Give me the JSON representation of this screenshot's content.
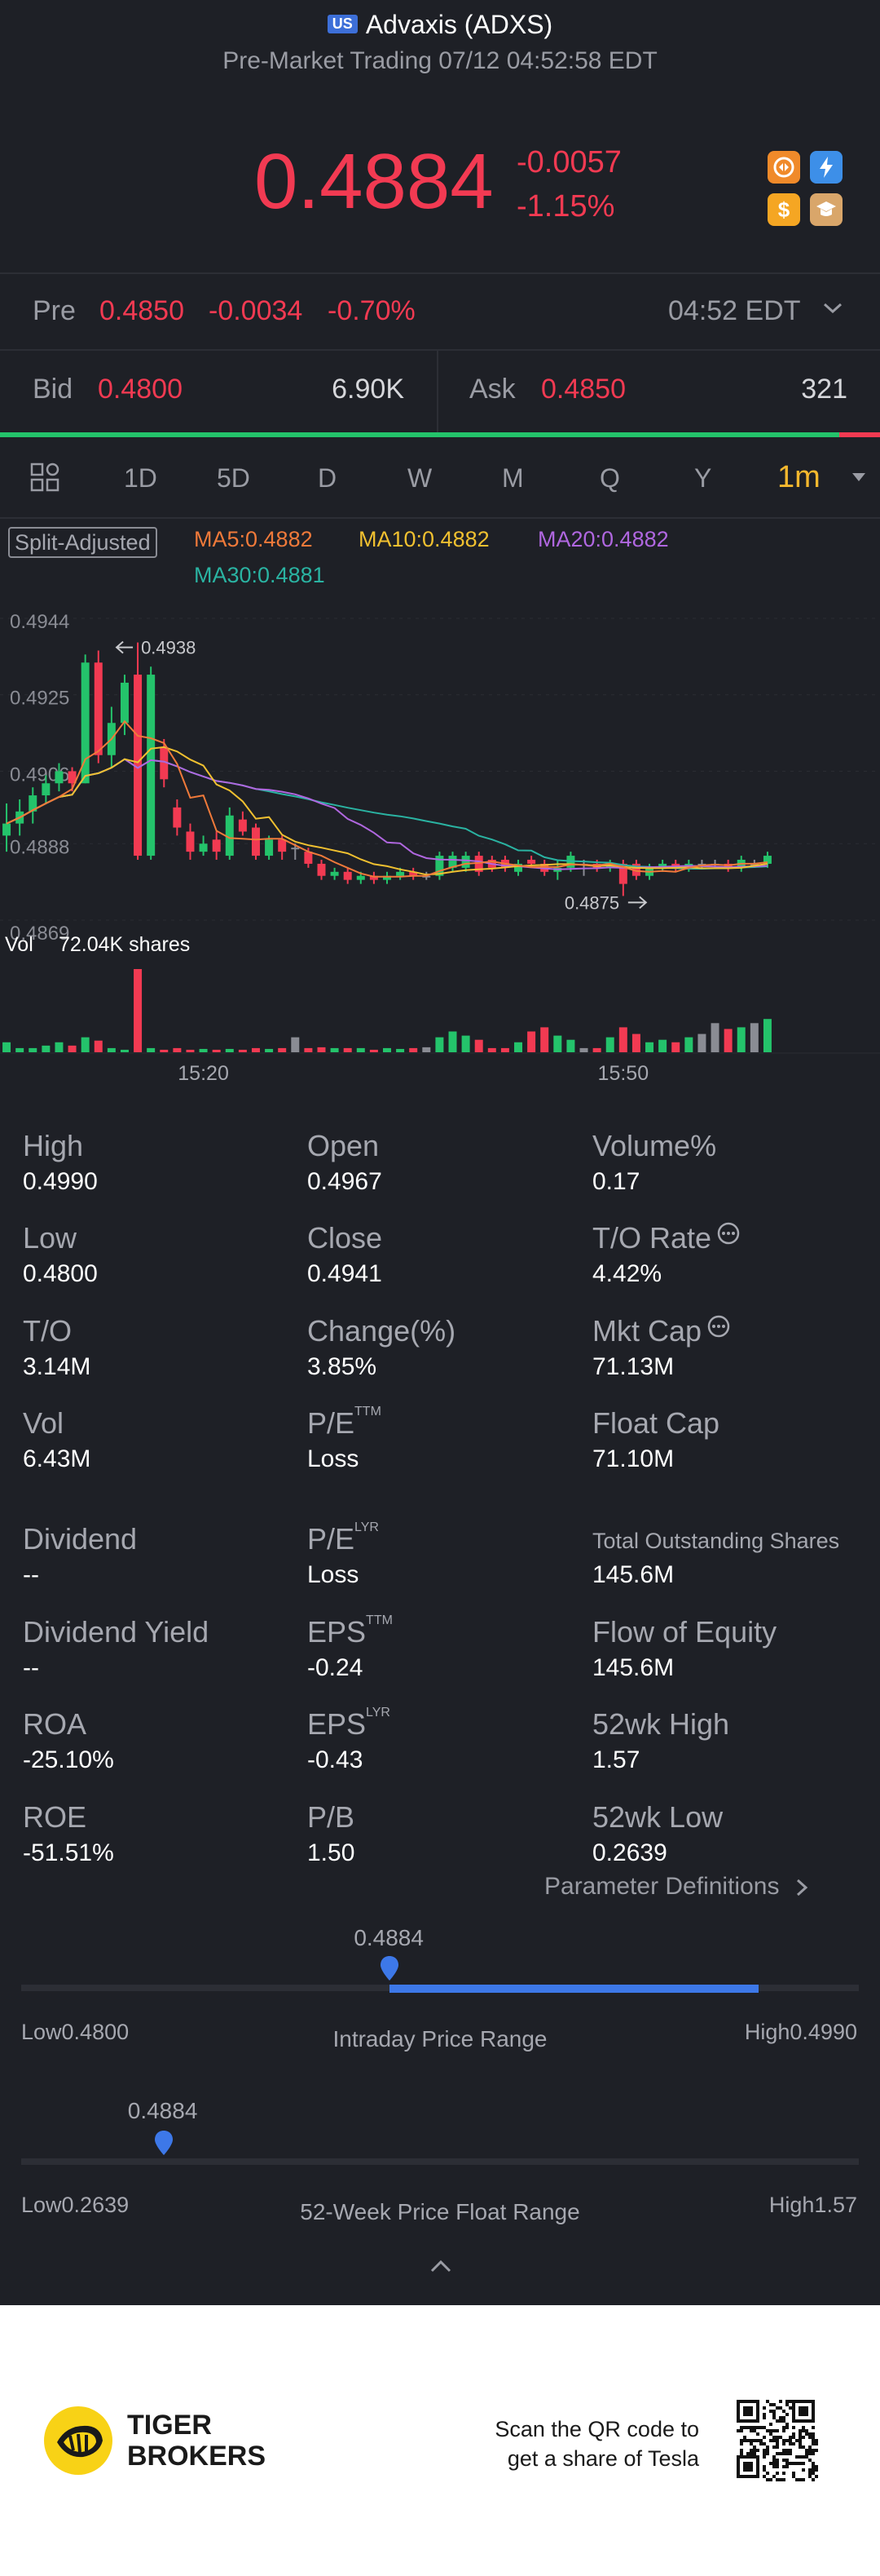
{
  "header": {
    "market_badge": "US",
    "title": "Advaxis (ADXS)",
    "subtitle": "Pre-Market Trading 07/12 04:52:58 EDT",
    "price": "0.4884",
    "change": "-0.0057",
    "change_pct": "-1.15%",
    "icons": [
      "trade-icon",
      "flash-icon",
      "dollar-icon",
      "hat-icon"
    ]
  },
  "pre": {
    "label": "Pre",
    "price": "0.4850",
    "change": "-0.0034",
    "change_pct": "-0.70%",
    "time": "04:52 EDT"
  },
  "quote": {
    "bid_label": "Bid",
    "bid": "0.4800",
    "bid_size": "6.90K",
    "ask_label": "Ask",
    "ask": "0.4850",
    "ask_size": "321"
  },
  "tabs": [
    "1D",
    "5D",
    "D",
    "W",
    "M",
    "Q",
    "Y",
    "1m"
  ],
  "active_tab": "1m",
  "split_label": "Split-Adjusted",
  "ma": {
    "ma5": "MA5:0.4882",
    "ma10": "MA10:0.4882",
    "ma20": "MA20:0.4882",
    "ma30": "MA30:0.4881"
  },
  "chart_data": {
    "type": "candlestick",
    "y_ticks": [
      "0.4944",
      "0.4925",
      "0.4906",
      "0.4888",
      "0.4869"
    ],
    "ylim": [
      0.4869,
      0.4944
    ],
    "x_ticks": [
      "15:20",
      "15:50"
    ],
    "high_marker": "0.4938",
    "low_marker": "0.4875",
    "volume_label": "Vol",
    "volume_value": "72.04K shares",
    "colors": {
      "up": "#24c36b",
      "down": "#f23a52",
      "neutral": "#8a8c94",
      "ma5": "#f07a3a",
      "ma10": "#f0c030",
      "ma20": "#b067e0",
      "ma30": "#2ab3a2"
    },
    "candles": [
      {
        "o": 0.489,
        "c": 0.4893,
        "h": 0.4898,
        "l": 0.4886,
        "v": 0.12
      },
      {
        "o": 0.4893,
        "c": 0.4896,
        "h": 0.4899,
        "l": 0.489,
        "v": 0.05
      },
      {
        "o": 0.4896,
        "c": 0.49,
        "h": 0.4902,
        "l": 0.4893,
        "v": 0.05
      },
      {
        "o": 0.49,
        "c": 0.4903,
        "h": 0.4905,
        "l": 0.4898,
        "v": 0.08
      },
      {
        "o": 0.4903,
        "c": 0.4906,
        "h": 0.4908,
        "l": 0.4901,
        "v": 0.12
      },
      {
        "o": 0.4906,
        "c": 0.4903,
        "h": 0.4907,
        "l": 0.4901,
        "v": 0.08
      },
      {
        "o": 0.4903,
        "c": 0.4933,
        "h": 0.4935,
        "l": 0.4903,
        "v": 0.18
      },
      {
        "o": 0.4933,
        "c": 0.491,
        "h": 0.4936,
        "l": 0.4908,
        "v": 0.14
      },
      {
        "o": 0.491,
        "c": 0.4918,
        "h": 0.4922,
        "l": 0.4907,
        "v": 0.05
      },
      {
        "o": 0.4918,
        "c": 0.4928,
        "h": 0.493,
        "l": 0.4915,
        "v": 0.03
      },
      {
        "o": 0.493,
        "c": 0.4885,
        "h": 0.4938,
        "l": 0.4884,
        "v": 1.0
      },
      {
        "o": 0.4885,
        "c": 0.493,
        "h": 0.4932,
        "l": 0.4884,
        "v": 0.05
      },
      {
        "o": 0.4912,
        "c": 0.4904,
        "h": 0.4914,
        "l": 0.4902,
        "v": 0.03
      },
      {
        "o": 0.4897,
        "c": 0.4892,
        "h": 0.4899,
        "l": 0.489,
        "v": 0.05
      },
      {
        "o": 0.4891,
        "c": 0.4886,
        "h": 0.4893,
        "l": 0.4884,
        "v": 0.03
      },
      {
        "o": 0.4886,
        "c": 0.4888,
        "h": 0.489,
        "l": 0.4885,
        "v": 0.04
      },
      {
        "o": 0.4889,
        "c": 0.4886,
        "h": 0.4891,
        "l": 0.4884,
        "v": 0.03
      },
      {
        "o": 0.4885,
        "c": 0.4895,
        "h": 0.4897,
        "l": 0.4884,
        "v": 0.04
      },
      {
        "o": 0.4894,
        "c": 0.4891,
        "h": 0.4896,
        "l": 0.489,
        "v": 0.03
      },
      {
        "o": 0.4892,
        "c": 0.4885,
        "h": 0.4893,
        "l": 0.4884,
        "v": 0.05
      },
      {
        "o": 0.4885,
        "c": 0.4889,
        "h": 0.489,
        "l": 0.4884,
        "v": 0.04
      },
      {
        "o": 0.4889,
        "c": 0.4886,
        "h": 0.489,
        "l": 0.4884,
        "v": 0.05
      },
      {
        "o": 0.4887,
        "c": 0.4887,
        "h": 0.4888,
        "l": 0.4884,
        "v": 0.18
      },
      {
        "o": 0.4886,
        "c": 0.4883,
        "h": 0.4887,
        "l": 0.4882,
        "v": 0.05
      },
      {
        "o": 0.4883,
        "c": 0.488,
        "h": 0.4884,
        "l": 0.4879,
        "v": 0.06
      },
      {
        "o": 0.488,
        "c": 0.4881,
        "h": 0.4882,
        "l": 0.4879,
        "v": 0.05
      },
      {
        "o": 0.4881,
        "c": 0.4879,
        "h": 0.4882,
        "l": 0.4878,
        "v": 0.05
      },
      {
        "o": 0.4879,
        "c": 0.488,
        "h": 0.4881,
        "l": 0.4878,
        "v": 0.05
      },
      {
        "o": 0.488,
        "c": 0.4879,
        "h": 0.4881,
        "l": 0.4878,
        "v": 0.03
      },
      {
        "o": 0.4879,
        "c": 0.488,
        "h": 0.4881,
        "l": 0.4878,
        "v": 0.05
      },
      {
        "o": 0.488,
        "c": 0.4881,
        "h": 0.4882,
        "l": 0.4879,
        "v": 0.04
      },
      {
        "o": 0.4881,
        "c": 0.488,
        "h": 0.4882,
        "l": 0.4879,
        "v": 0.05
      },
      {
        "o": 0.488,
        "c": 0.488,
        "h": 0.4881,
        "l": 0.4879,
        "v": 0.06
      },
      {
        "o": 0.488,
        "c": 0.4885,
        "h": 0.4886,
        "l": 0.4879,
        "v": 0.18
      },
      {
        "o": 0.4882,
        "c": 0.4885,
        "h": 0.4886,
        "l": 0.4881,
        "v": 0.25
      },
      {
        "o": 0.4882,
        "c": 0.4885,
        "h": 0.4886,
        "l": 0.4881,
        "v": 0.2
      },
      {
        "o": 0.4885,
        "c": 0.4881,
        "h": 0.4886,
        "l": 0.488,
        "v": 0.15
      },
      {
        "o": 0.4884,
        "c": 0.4882,
        "h": 0.4885,
        "l": 0.4881,
        "v": 0.05
      },
      {
        "o": 0.4884,
        "c": 0.4882,
        "h": 0.4885,
        "l": 0.4881,
        "v": 0.05
      },
      {
        "o": 0.4881,
        "c": 0.4883,
        "h": 0.4884,
        "l": 0.488,
        "v": 0.12
      },
      {
        "o": 0.4884,
        "c": 0.4883,
        "h": 0.4885,
        "l": 0.4882,
        "v": 0.25
      },
      {
        "o": 0.4883,
        "c": 0.4881,
        "h": 0.4884,
        "l": 0.488,
        "v": 0.3
      },
      {
        "o": 0.4881,
        "c": 0.4882,
        "h": 0.4884,
        "l": 0.4879,
        "v": 0.2
      },
      {
        "o": 0.4882,
        "c": 0.4885,
        "h": 0.4886,
        "l": 0.4881,
        "v": 0.15
      },
      {
        "o": 0.4883,
        "c": 0.4883,
        "h": 0.4884,
        "l": 0.488,
        "v": 0.05
      },
      {
        "o": 0.4883,
        "c": 0.4882,
        "h": 0.4884,
        "l": 0.4881,
        "v": 0.05
      },
      {
        "o": 0.4882,
        "c": 0.4883,
        "h": 0.4884,
        "l": 0.4881,
        "v": 0.18
      },
      {
        "o": 0.4883,
        "c": 0.4878,
        "h": 0.4884,
        "l": 0.4875,
        "v": 0.3
      },
      {
        "o": 0.4883,
        "c": 0.488,
        "h": 0.4884,
        "l": 0.4879,
        "v": 0.22
      },
      {
        "o": 0.488,
        "c": 0.4882,
        "h": 0.4883,
        "l": 0.4879,
        "v": 0.12
      },
      {
        "o": 0.4882,
        "c": 0.4883,
        "h": 0.4884,
        "l": 0.4881,
        "v": 0.15
      },
      {
        "o": 0.4883,
        "c": 0.4882,
        "h": 0.4884,
        "l": 0.4881,
        "v": 0.12
      },
      {
        "o": 0.4882,
        "c": 0.4883,
        "h": 0.4884,
        "l": 0.4881,
        "v": 0.18
      },
      {
        "o": 0.4883,
        "c": 0.4883,
        "h": 0.4884,
        "l": 0.4882,
        "v": 0.22
      },
      {
        "o": 0.4883,
        "c": 0.4883,
        "h": 0.4884,
        "l": 0.4882,
        "v": 0.35
      },
      {
        "o": 0.4883,
        "c": 0.4882,
        "h": 0.4884,
        "l": 0.4881,
        "v": 0.28
      },
      {
        "o": 0.4882,
        "c": 0.4884,
        "h": 0.4885,
        "l": 0.4881,
        "v": 0.3
      },
      {
        "o": 0.4883,
        "c": 0.4883,
        "h": 0.4884,
        "l": 0.4882,
        "v": 0.35
      },
      {
        "o": 0.4883,
        "c": 0.4885,
        "h": 0.4886,
        "l": 0.4882,
        "v": 0.4
      }
    ]
  },
  "stats": [
    {
      "label": "High",
      "value": "0.4990"
    },
    {
      "label": "Open",
      "value": "0.4967"
    },
    {
      "label": "Volume%",
      "value": "0.17"
    },
    {
      "label": "Low",
      "value": "0.4800"
    },
    {
      "label": "Close",
      "value": "0.4941"
    },
    {
      "label": "T/O Rate",
      "value": "4.42%"
    },
    {
      "label": "T/O",
      "value": "3.14M"
    },
    {
      "label": "Change(%)",
      "value": "3.85%"
    },
    {
      "label": "Mkt Cap",
      "value": "71.13M"
    },
    {
      "label": "Vol",
      "value": "6.43M"
    },
    {
      "label": "P/E",
      "sup": "TTM",
      "value": "Loss"
    },
    {
      "label": "Float Cap",
      "value": "71.10M"
    },
    {
      "label": "Dividend",
      "value": "--"
    },
    {
      "label": "P/E",
      "sup": "LYR",
      "value": "Loss"
    },
    {
      "label": "Total Outstanding Shares",
      "value": "145.6M"
    },
    {
      "label": "Dividend Yield",
      "value": "--"
    },
    {
      "label": "EPS",
      "sup": "TTM",
      "value": "-0.24"
    },
    {
      "label": "Flow of Equity",
      "value": "145.6M"
    },
    {
      "label": "ROA",
      "value": "-25.10%"
    },
    {
      "label": "EPS",
      "sup": "LYR",
      "value": "-0.43"
    },
    {
      "label": "52wk High",
      "value": "1.57"
    },
    {
      "label": "ROE",
      "value": "-51.51%"
    },
    {
      "label": "P/B",
      "value": "1.50"
    },
    {
      "label": "52wk Low",
      "value": "0.2639"
    }
  ],
  "param_link": "Parameter Definitions",
  "intraday": {
    "current": "0.4884",
    "low_label": "Low0.4800",
    "high_label": "High0.4990",
    "title": "Intraday Price Range",
    "marker_fraction": 0.44,
    "fill_to_fraction": 0.88
  },
  "week52": {
    "current": "0.4884",
    "low_label": "Low0.2639",
    "high_label": "High1.57",
    "title": "52-Week Price Float Range",
    "marker_fraction": 0.17
  },
  "footer": {
    "brand_line1": "TIGER",
    "brand_line2": "BROKERS",
    "promo_line1": "Scan the QR code to",
    "promo_line2": "get a share of Tesla"
  }
}
